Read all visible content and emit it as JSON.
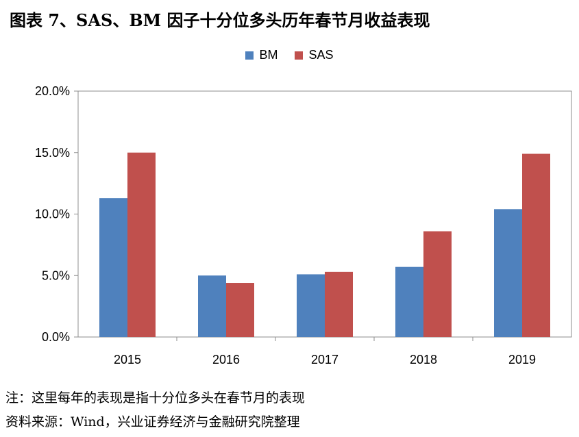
{
  "title": "图表 7、SAS、BM 因子十分位多头历年春节月收益表现",
  "colors": {
    "BM": "#4F81BD",
    "SAS": "#C0504D"
  },
  "chart_data": {
    "type": "bar",
    "categories": [
      "2015",
      "2016",
      "2017",
      "2018",
      "2019"
    ],
    "series": [
      {
        "name": "BM",
        "values": [
          11.3,
          5.0,
          5.1,
          5.7,
          10.4
        ]
      },
      {
        "name": "SAS",
        "values": [
          15.0,
          4.4,
          5.3,
          8.6,
          14.9
        ]
      }
    ],
    "ylim": [
      0,
      20
    ],
    "yticks": [
      0,
      5,
      10,
      15,
      20
    ],
    "ytick_labels": [
      "0.0%",
      "5.0%",
      "10.0%",
      "15.0%",
      "20.0%"
    ],
    "legend_position": "top-center",
    "grid": false
  },
  "notes": {
    "note": "注：这里每年的表现是指十分位多头在春节月的表现",
    "source": "资料来源：Wind，兴业证券经济与金融研究院整理"
  }
}
